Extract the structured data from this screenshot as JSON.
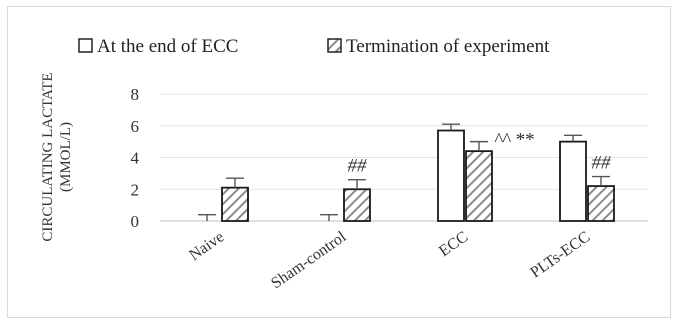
{
  "chart_data": {
    "type": "bar",
    "title": "",
    "xlabel": "",
    "ylabel": "CIRCULATING LACTATE (MMOL/L)",
    "ylabel_lines": [
      "CIRCULATING LACTATE",
      "(MMOL/L)"
    ],
    "ylim": [
      0,
      8
    ],
    "yticks": [
      "0",
      "2",
      "4",
      "6",
      "8"
    ],
    "grid": true,
    "legend_position": "top",
    "categories": [
      "Naive",
      "Sham-control",
      "ECC",
      "PLTs-ECC"
    ],
    "series": [
      {
        "name": "At the end of ECC",
        "fill": "white",
        "values": [
          0,
          0,
          5.7,
          5.0
        ],
        "errors": [
          0.4,
          0.4,
          0.4,
          0.4
        ]
      },
      {
        "name": "Termination of experiment",
        "fill": "hatched",
        "values": [
          2.1,
          2.0,
          4.4,
          2.2
        ],
        "errors": [
          0.6,
          0.6,
          0.6,
          0.6
        ]
      }
    ],
    "annotations": [
      {
        "category": "Sham-control",
        "series": "Termination of experiment",
        "text": "##"
      },
      {
        "category": "ECC",
        "series": "Termination of experiment",
        "text": "^^ **"
      },
      {
        "category": "PLTs-ECC",
        "series": "Termination of experiment",
        "text": "##"
      }
    ]
  }
}
